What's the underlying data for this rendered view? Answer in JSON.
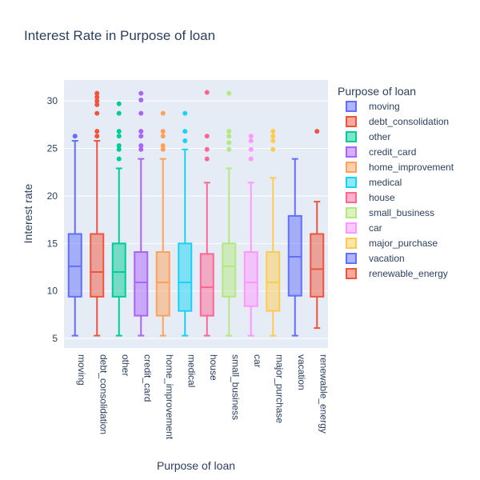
{
  "chart_data": {
    "type": "box",
    "title": "Interest Rate in Purpose of loan",
    "xlabel": "Purpose of loan",
    "ylabel": "Interest rate",
    "ylim": [
      4,
      32.2
    ],
    "yticks": [
      5,
      10,
      15,
      20,
      25,
      30
    ],
    "legend_title": "Purpose of loan",
    "legend_position": "right",
    "grid": true,
    "plot_bg": "#e5ecf6",
    "series": [
      {
        "name": "moving",
        "color": "#636efa",
        "whisker_low": 5.3,
        "q1": 9.4,
        "median": 12.6,
        "q3": 16.0,
        "whisker_high": 25.8,
        "outliers": [
          26.3
        ]
      },
      {
        "name": "debt_consolidation",
        "color": "#ef553b",
        "whisker_low": 5.3,
        "q1": 9.4,
        "median": 12.0,
        "q3": 16.0,
        "whisker_high": 25.8,
        "outliers": [
          26.3,
          26.8,
          28.7,
          29.6,
          30.0,
          30.4,
          30.8
        ]
      },
      {
        "name": "other",
        "color": "#00cc96",
        "whisker_low": 5.3,
        "q1": 9.4,
        "median": 12.0,
        "q3": 15.0,
        "whisker_high": 22.9,
        "outliers": [
          23.9,
          24.9,
          25.3,
          26.3,
          26.8,
          28.7,
          29.7
        ]
      },
      {
        "name": "credit_card",
        "color": "#ab63fa",
        "whisker_low": 5.3,
        "q1": 7.4,
        "median": 10.9,
        "q3": 14.1,
        "whisker_high": 23.9,
        "outliers": [
          24.9,
          25.3,
          26.3,
          26.8,
          28.7,
          30.1,
          30.8
        ]
      },
      {
        "name": "home_improvement",
        "color": "#ffa15a",
        "whisker_low": 5.3,
        "q1": 7.4,
        "median": 10.9,
        "q3": 14.1,
        "whisker_high": 23.9,
        "outliers": [
          24.9,
          25.3,
          26.3,
          26.8,
          28.7
        ]
      },
      {
        "name": "medical",
        "color": "#19d3f3",
        "whisker_low": 5.3,
        "q1": 7.9,
        "median": 10.9,
        "q3": 15.0,
        "whisker_high": 24.9,
        "outliers": [
          25.8,
          26.8,
          28.7
        ]
      },
      {
        "name": "house",
        "color": "#ff6692",
        "whisker_low": 5.3,
        "q1": 7.4,
        "median": 10.4,
        "q3": 13.9,
        "whisker_high": 21.4,
        "outliers": [
          23.9,
          24.9,
          26.3,
          30.9
        ]
      },
      {
        "name": "small_business",
        "color": "#b6e880",
        "whisker_low": 5.3,
        "q1": 9.4,
        "median": 12.6,
        "q3": 15.0,
        "whisker_high": 22.9,
        "outliers": [
          24.9,
          25.6,
          26.3,
          26.8,
          30.8
        ]
      },
      {
        "name": "car",
        "color": "#ff97ff",
        "whisker_low": 5.3,
        "q1": 8.4,
        "median": 10.9,
        "q3": 14.1,
        "whisker_high": 21.4,
        "outliers": [
          23.9,
          24.9,
          25.8,
          26.3
        ]
      },
      {
        "name": "major_purchase",
        "color": "#fecb52",
        "whisker_low": 5.3,
        "q1": 7.9,
        "median": 10.9,
        "q3": 14.1,
        "whisker_high": 21.9,
        "outliers": [
          24.9,
          25.8,
          26.3,
          26.8
        ]
      },
      {
        "name": "vacation",
        "color": "#636efa",
        "whisker_low": 5.3,
        "q1": 9.5,
        "median": 13.6,
        "q3": 17.9,
        "whisker_high": 23.9,
        "outliers": []
      },
      {
        "name": "renewable_energy",
        "color": "#ef553b",
        "whisker_low": 6.1,
        "q1": 9.4,
        "median": 12.3,
        "q3": 16.0,
        "whisker_high": 19.4,
        "outliers": [
          26.8
        ]
      }
    ]
  }
}
